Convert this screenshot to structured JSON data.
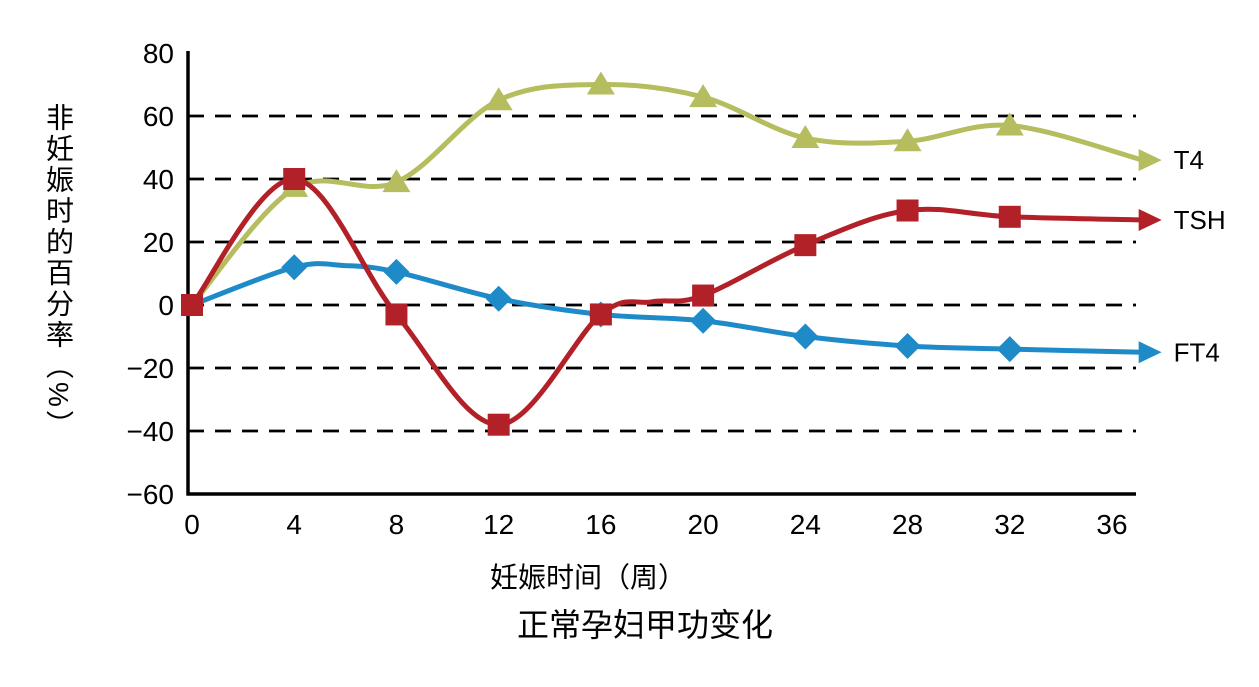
{
  "page": {
    "background": "#ffffff"
  },
  "chart_data": {
    "type": "line",
    "title": "正常孕妇甲功变化",
    "xlabel": "妊娠时间（周）",
    "ylabel": "非妊娠时的百分率（%）",
    "axis_color": "#000000",
    "grid_style": "dashed",
    "legend_position": "right-line-ends",
    "xlim": [
      0,
      36
    ],
    "ylim": [
      -60,
      80
    ],
    "x_ticks": [
      0,
      4,
      8,
      12,
      16,
      20,
      24,
      28,
      32,
      36
    ],
    "y_ticks": [
      [
        80,
        "80"
      ],
      [
        60,
        "60"
      ],
      [
        40,
        "40"
      ],
      [
        20,
        "20"
      ],
      [
        0,
        "0"
      ],
      [
        -20,
        "−20"
      ],
      [
        -40,
        "−40"
      ],
      [
        -60,
        "−60"
      ]
    ],
    "grid_values": [
      60,
      40,
      20,
      0,
      -20,
      -40
    ],
    "series": [
      {
        "name": "T4",
        "color": "#b5bd5e",
        "marker": "triangle",
        "points": [
          [
            0,
            0
          ],
          [
            4,
            37
          ],
          [
            8,
            39
          ],
          [
            12,
            65
          ],
          [
            16,
            70
          ],
          [
            20,
            66
          ],
          [
            24,
            53
          ],
          [
            28,
            52
          ],
          [
            32,
            57
          ],
          [
            37.2,
            46
          ]
        ],
        "markers": [
          [
            4,
            37.5
          ],
          [
            8,
            39
          ],
          [
            12,
            65
          ],
          [
            16,
            70
          ],
          [
            20,
            66
          ],
          [
            24,
            53
          ],
          [
            28,
            52
          ],
          [
            32,
            57
          ]
        ]
      },
      {
        "name": "FT4",
        "color": "#1e8bc8",
        "marker": "diamond",
        "points": [
          [
            0,
            0
          ],
          [
            4,
            12
          ],
          [
            6,
            12.5
          ],
          [
            8,
            10.5
          ],
          [
            12,
            2
          ],
          [
            16,
            -3
          ],
          [
            20,
            -5
          ],
          [
            24,
            -10
          ],
          [
            28,
            -13
          ],
          [
            32,
            -14
          ],
          [
            37.2,
            -15
          ]
        ],
        "markers": [
          [
            4,
            12
          ],
          [
            8,
            10.5
          ],
          [
            12,
            2
          ],
          [
            16,
            -3
          ],
          [
            20,
            -5
          ],
          [
            24,
            -10
          ],
          [
            28,
            -13
          ],
          [
            32,
            -14
          ]
        ]
      },
      {
        "name": "TSH",
        "color": "#b22028",
        "marker": "square",
        "points": [
          [
            0,
            0
          ],
          [
            4,
            40
          ],
          [
            8,
            -3
          ],
          [
            12,
            -38
          ],
          [
            16,
            -3
          ],
          [
            18,
            1
          ],
          [
            20,
            3
          ],
          [
            24,
            19
          ],
          [
            28,
            30
          ],
          [
            32,
            28
          ],
          [
            37.2,
            27
          ]
        ],
        "markers": [
          [
            0,
            0
          ],
          [
            4,
            40
          ],
          [
            8,
            -3
          ],
          [
            12,
            -38
          ],
          [
            16,
            -3
          ],
          [
            20,
            3
          ],
          [
            24,
            19
          ],
          [
            28,
            30
          ],
          [
            32,
            28
          ]
        ]
      }
    ]
  }
}
